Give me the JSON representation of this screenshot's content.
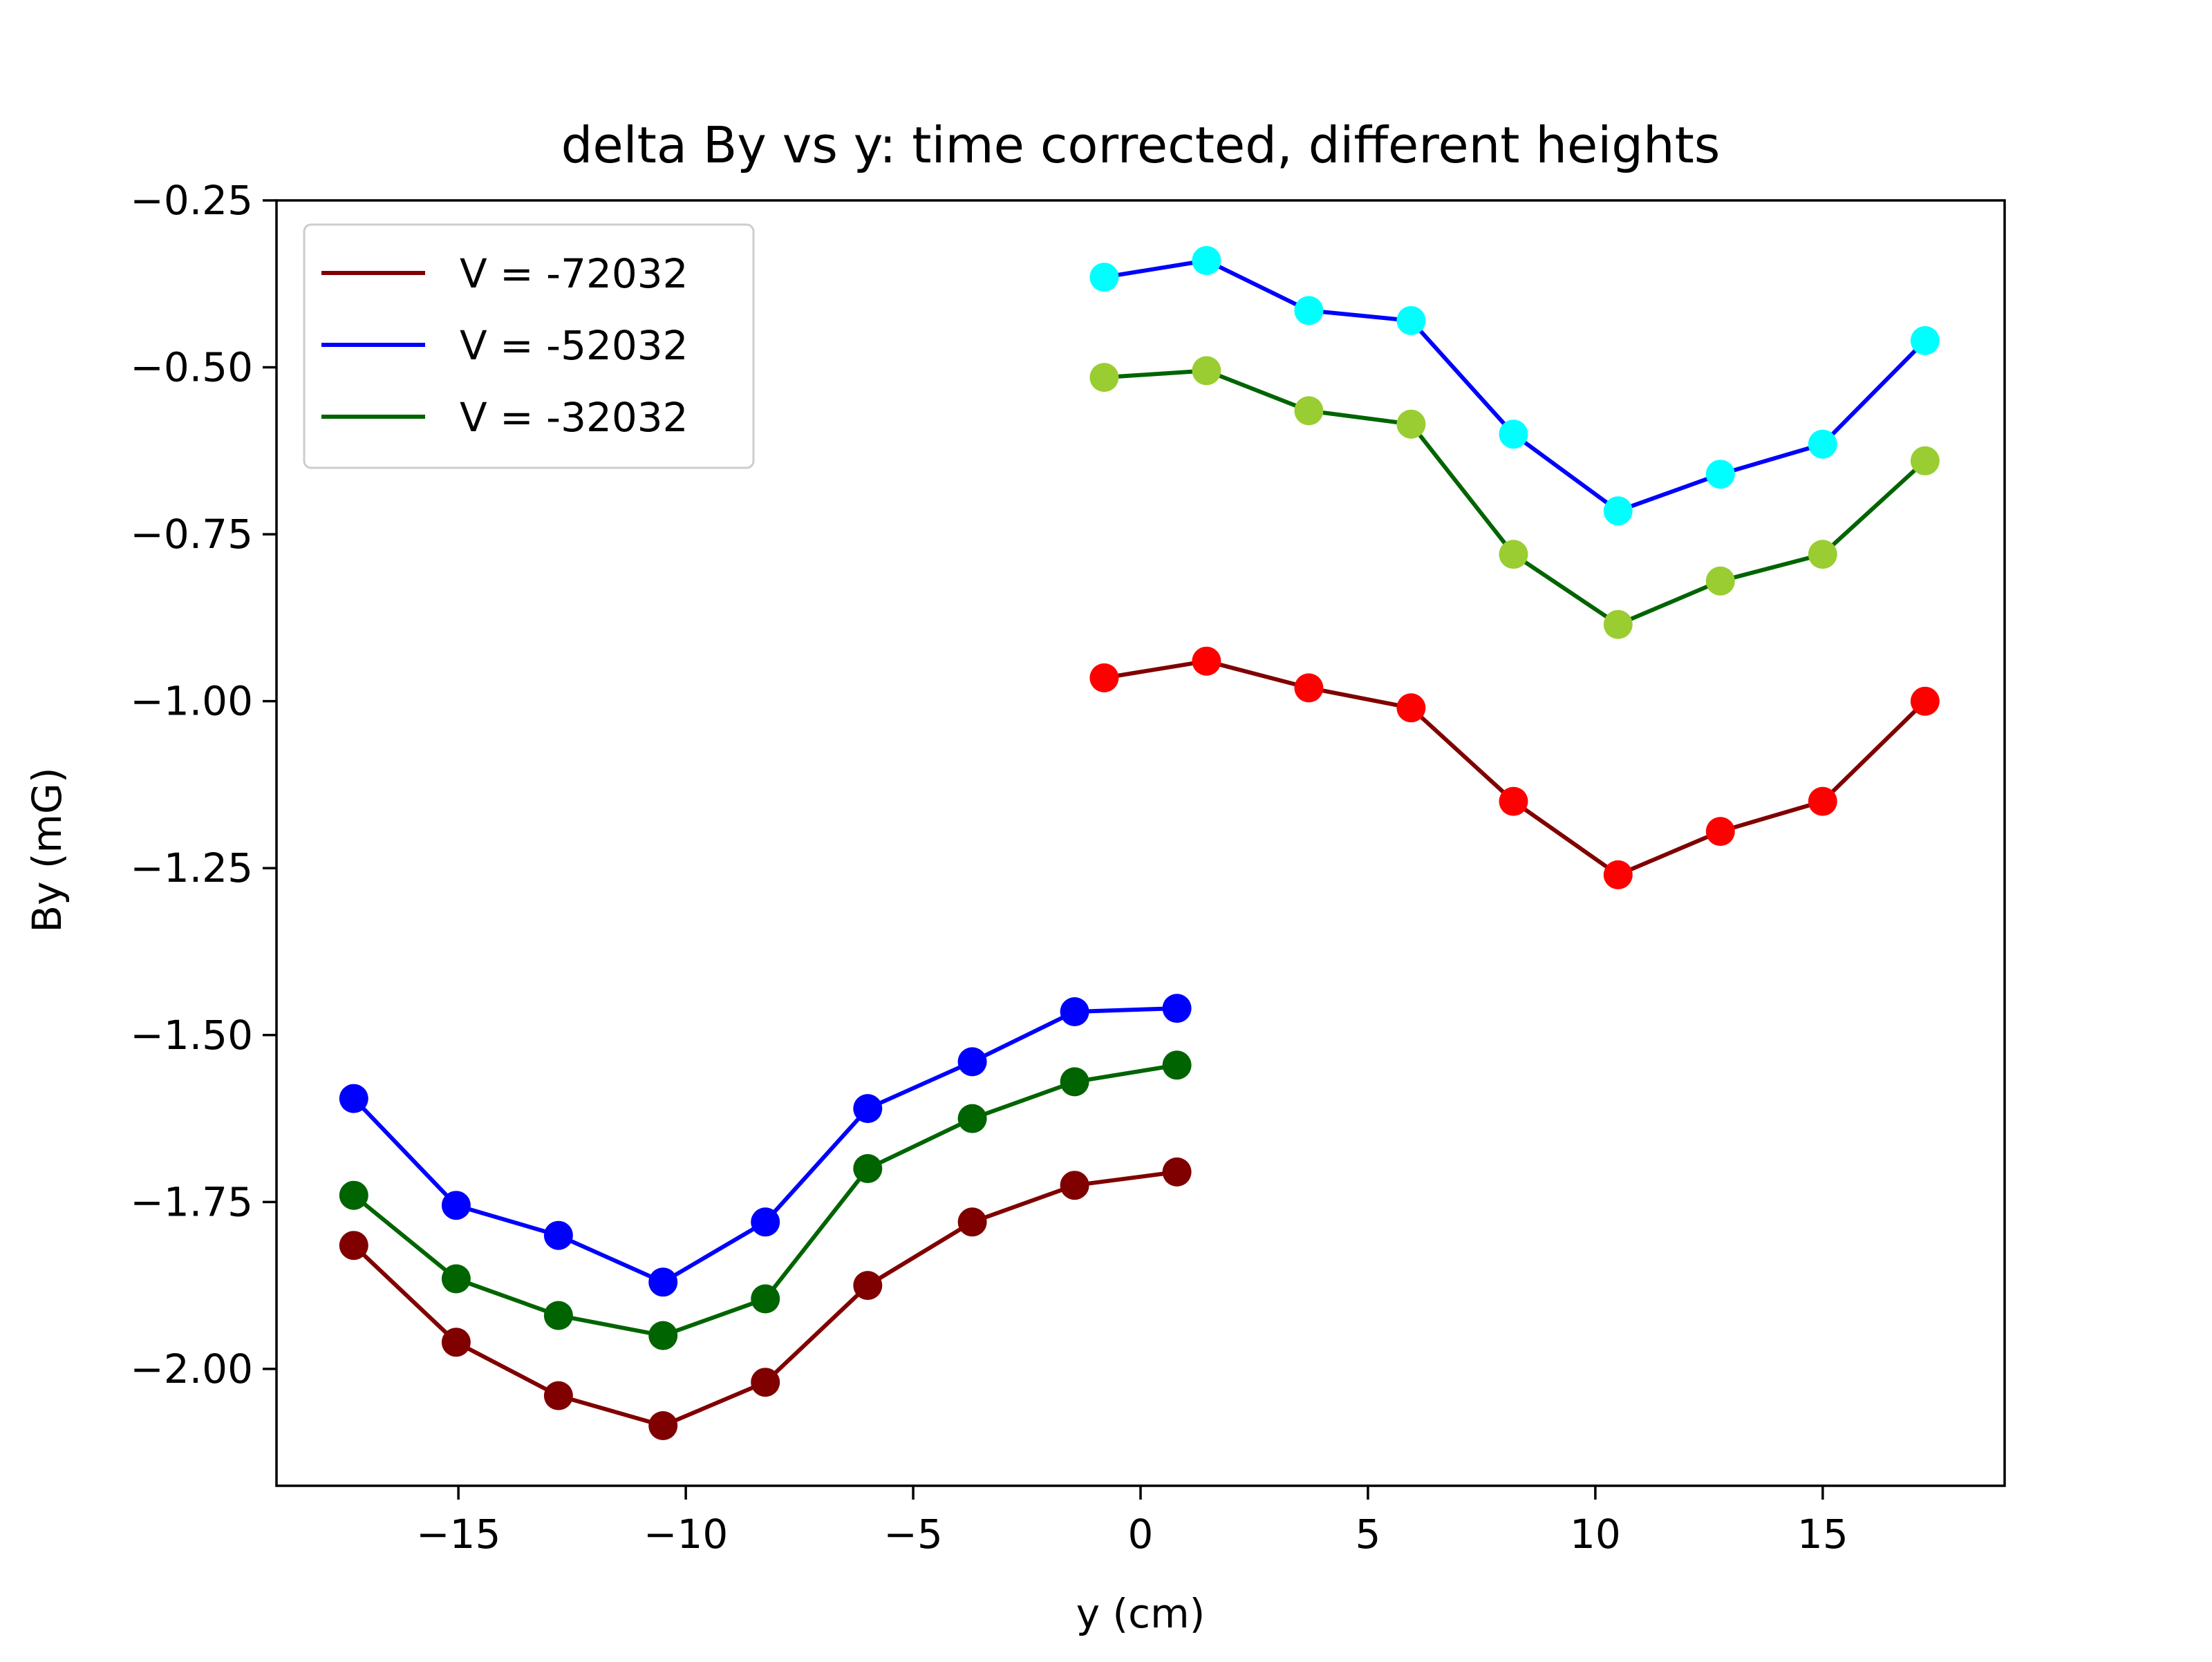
{
  "chart_data": {
    "type": "line",
    "title": "delta By vs y: time corrected, different heights",
    "xlabel": "y (cm)",
    "ylabel": "By (mG)",
    "xlim": [
      -19,
      19
    ],
    "ylim": [
      -2.175,
      -0.25
    ],
    "xticks": [
      {
        "value": -15,
        "label": "−15"
      },
      {
        "value": -10,
        "label": "−10"
      },
      {
        "value": -5,
        "label": "−5"
      },
      {
        "value": 0,
        "label": "0"
      },
      {
        "value": 5,
        "label": "5"
      },
      {
        "value": 10,
        "label": "10"
      },
      {
        "value": 15,
        "label": "15"
      }
    ],
    "yticks": [
      {
        "value": -0.25,
        "label": "−0.25"
      },
      {
        "value": -0.5,
        "label": "−0.50"
      },
      {
        "value": -0.75,
        "label": "−0.75"
      },
      {
        "value": -1.0,
        "label": "−1.00"
      },
      {
        "value": -1.25,
        "label": "−1.25"
      },
      {
        "value": -1.5,
        "label": "−1.50"
      },
      {
        "value": -1.75,
        "label": "−1.75"
      },
      {
        "value": -2.0,
        "label": "−2.00"
      }
    ],
    "grid": false,
    "legend_position": "top-left",
    "legend": [
      {
        "label": "V = -72032",
        "color": "#800000"
      },
      {
        "label": "V = -52032",
        "color": "#0000ff"
      },
      {
        "label": "V = -32032",
        "color": "#006400"
      }
    ],
    "series": [
      {
        "line_color": "#800000",
        "marker_color": "#800000",
        "x": [
          -17.3,
          -15.05,
          -12.8,
          -10.5,
          -8.25,
          -6.0,
          -3.7,
          -1.45,
          0.8
        ],
        "y": [
          -1.815,
          -1.96,
          -2.04,
          -2.085,
          -2.02,
          -1.875,
          -1.78,
          -1.725,
          -1.705
        ]
      },
      {
        "line_color": "#800000",
        "marker_color": "#ff0000",
        "x": [
          -0.8,
          1.45,
          3.7,
          5.95,
          8.2,
          10.5,
          12.75,
          15.0,
          17.25
        ],
        "y": [
          -0.965,
          -0.94,
          -0.98,
          -1.01,
          -1.15,
          -1.26,
          -1.195,
          -1.15,
          -1.0
        ]
      },
      {
        "line_color": "#0000ff",
        "marker_color": "#0000ff",
        "x": [
          -17.3,
          -15.05,
          -12.8,
          -10.5,
          -8.25,
          -6.0,
          -3.7,
          -1.45,
          0.8
        ],
        "y": [
          -1.595,
          -1.755,
          -1.8,
          -1.87,
          -1.78,
          -1.61,
          -1.54,
          -1.465,
          -1.46
        ]
      },
      {
        "line_color": "#0000ff",
        "marker_color": "#00ffff",
        "x": [
          -0.8,
          1.45,
          3.7,
          5.95,
          8.2,
          10.5,
          12.75,
          15.0,
          17.25
        ],
        "y": [
          -0.365,
          -0.34,
          -0.415,
          -0.43,
          -0.6,
          -0.715,
          -0.66,
          -0.615,
          -0.46
        ]
      },
      {
        "line_color": "#006400",
        "marker_color": "#006400",
        "x": [
          -17.3,
          -15.05,
          -12.8,
          -10.5,
          -8.25,
          -6.0,
          -3.7,
          -1.45,
          0.8
        ],
        "y": [
          -1.74,
          -1.865,
          -1.92,
          -1.95,
          -1.895,
          -1.7,
          -1.625,
          -1.57,
          -1.545
        ]
      },
      {
        "line_color": "#006400",
        "marker_color": "#9acd32",
        "x": [
          -0.8,
          1.45,
          3.7,
          5.95,
          8.2,
          10.5,
          12.75,
          15.0,
          17.25
        ],
        "y": [
          -0.515,
          -0.505,
          -0.565,
          -0.585,
          -0.78,
          -0.885,
          -0.82,
          -0.78,
          -0.64
        ]
      }
    ]
  }
}
